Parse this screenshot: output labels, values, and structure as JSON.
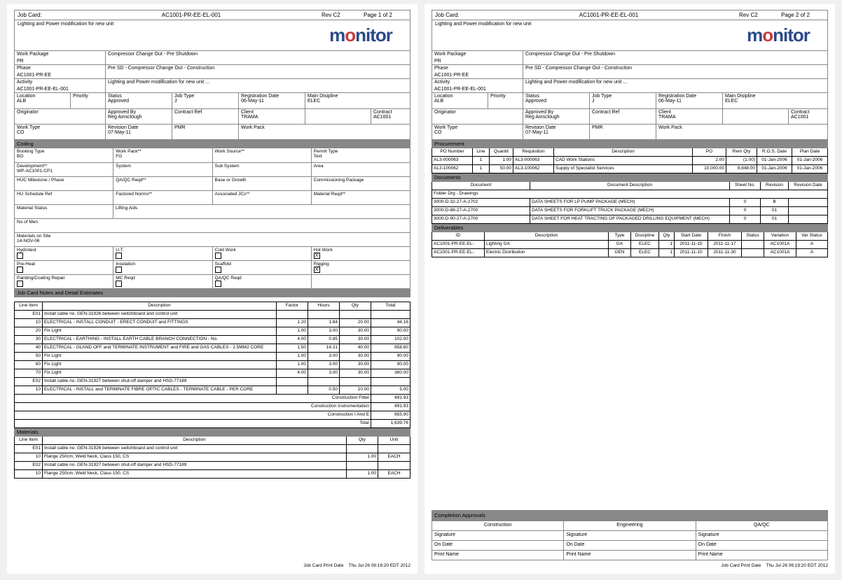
{
  "header": {
    "label": "Job Card:",
    "code": "AC1001-PR-EE-EL-001",
    "rev": "Rev C2",
    "page1": "Page 1 of 2",
    "page2": "Page 2 of 2",
    "subtitle": "Lighting and Power modification for new unit",
    "logo_pre": "m",
    "logo_o": "o",
    "logo_post": "nitor"
  },
  "meta": {
    "work_package_lbl": "Work Package",
    "work_package_sub": "PR",
    "work_package_val": "Compressor Change Out - Pre Shutdown",
    "phase_lbl": "Phase",
    "phase_sub": "AC1001-PR-EE",
    "phase_val": "Pre SD - Compressor Change Out - Construction",
    "activity_lbl": "Activity",
    "activity_sub": "AC1001-PR-EE-EL-001",
    "activity_val": "Lighting and Power modification for new unit ..."
  },
  "grid": {
    "r1": {
      "location_lbl": "Location",
      "location_val": "ALB",
      "priority_lbl": "Priority",
      "priority_val": "",
      "status_lbl": "Status",
      "status_val": "Approved",
      "jobtype_lbl": "Job Type",
      "jobtype_val": "J",
      "regdate_lbl": "Registration Date",
      "regdate_val": "06-May-11",
      "disc_lbl": "Main Disipline",
      "disc_val": "ELEC"
    },
    "r2": {
      "orig_lbl": "Originator",
      "orig_val": "",
      "appby_lbl": "Approved By",
      "appby_val": "Reg Ainsclough",
      "cref_lbl": "Contract Ref",
      "cref_val": "",
      "client_lbl": "Client",
      "client_val": "TRAMA",
      "contract_lbl": "Contract",
      "contract_val": "AC1001"
    },
    "r3": {
      "wtype_lbl": "Work Type",
      "wtype_val": "CO",
      "revdate_lbl": "Revision Date",
      "revdate_val": "07-May-11",
      "pmr_lbl": "PMR",
      "pmr_val": "",
      "wpack_lbl": "Work Pack",
      "wpack_val": ""
    }
  },
  "coding_title": "Coding",
  "coding": {
    "r1": [
      "Booking Type",
      "Work Pack**",
      "Work Source**",
      "Permit Type"
    ],
    "r1v": [
      "BO",
      "FG",
      "",
      "Text"
    ],
    "r2": [
      "Development**",
      "System",
      "Sub System",
      "Area"
    ],
    "r2v": [
      "WP-AC1001-CP1",
      "",
      "",
      ""
    ],
    "r3": [
      "HUC Milestone / Phase",
      "QA/QC Reqd**",
      "Base or Growth",
      "Commissioning Package"
    ],
    "r4": [
      "HU Schedule Ref",
      "Factored Norms**",
      "Associated JCs**",
      "Material Reqd**"
    ],
    "r5a": "Material Status",
    "r5b": "Lifting Aids",
    "r6": "No of Men",
    "r7a": "Materials on Site",
    "r7b": "14-NOV-06",
    "r8": {
      "a": "Hydrotest",
      "b": "U.T.",
      "c": "Cold Work",
      "d": "Hot Work",
      "d_chk": "X"
    },
    "r9": {
      "a": "Pre-Heat",
      "b": "Insulation",
      "c": "Scaffold",
      "d": "Rigging",
      "d_chk": "X"
    },
    "r10": {
      "a": "Painting/Coating Repair",
      "b": "MC Reqd",
      "c": "QA/QC Reqd"
    }
  },
  "notes_title": "Job Card Notes and Detail Estimates",
  "est_cols": [
    "Line Item",
    "Description",
    "Factor",
    "Hours",
    "Qty",
    "Total"
  ],
  "est": [
    {
      "li": "E01",
      "desc": "Install cable no. GEN-31926 between switchboard and control unit"
    },
    {
      "li": "10",
      "desc": "ELECTRICAL - INSTALL CONDUIT - ERECT CONDUIT and FITTINGS",
      "f": "1.20",
      "h": "1.84",
      "q": "20.00",
      "t": "44.16"
    },
    {
      "li": "20",
      "desc": "Fix Light",
      "f": "1.00",
      "h": "3.00",
      "q": "30.00",
      "t": "90.00"
    },
    {
      "li": "30",
      "desc": "ELECTRICAL - EARTHING - INSTALL EARTH CABLE BRANCH CONNECTION - No.",
      "f": "4.00",
      "h": "0.85",
      "q": "30.00",
      "t": "102.00"
    },
    {
      "li": "40",
      "desc": "ELECTRICAL - GLAND OFF and TERMINATE INSTRUMENT and FIRE and GAS CABLES - 2.5MM2 CORE",
      "f": "1.50",
      "h": "14.31",
      "q": "40.00",
      "t": "858.60"
    },
    {
      "li": "50",
      "desc": "Fix Light",
      "f": "1.00",
      "h": "3.00",
      "q": "30.00",
      "t": "90.00"
    },
    {
      "li": "60",
      "desc": "Fix Light",
      "f": "1.00",
      "h": "3.00",
      "q": "30.00",
      "t": "90.00"
    },
    {
      "li": "70",
      "desc": "Fix Light",
      "f": "4.00",
      "h": "3.00",
      "q": "30.00",
      "t": "360.00"
    },
    {
      "li": "E02",
      "desc": "Install cable no. GEN-31927 between shut-off damper and HSD-77189"
    },
    {
      "li": "10",
      "desc": "ELECTRICAL - INSTALL and TERMINATE FIBRE OPTIC CABLES - TERMINATE CABLE - PER CORE",
      "f": "",
      "h": "0.50",
      "q": "10.00",
      "t": "5.00"
    }
  ],
  "est_tot": [
    {
      "lbl": "Construction Fitter",
      "v": "491.93"
    },
    {
      "lbl": "Construction Instrumentation",
      "v": "491.93"
    },
    {
      "lbl": "Construction I And E",
      "v": "655.90"
    },
    {
      "lbl": "Total",
      "v": "1,639.76"
    }
  ],
  "mat_title": "Materials",
  "mat_cols": [
    "Line Item",
    "Description",
    "Qty",
    "Unit"
  ],
  "mat": [
    {
      "li": "E01",
      "desc": "Install cable no. GEN-31926 between switchboard and control unit"
    },
    {
      "li": "10",
      "desc": "Flange 250cm, Weld Neck, Class 150, CS",
      "q": "1.00",
      "u": "EACH"
    },
    {
      "li": "E02",
      "desc": "Install cable no. GEN-31927 between shut-off damper and HSD-77189"
    },
    {
      "li": "10",
      "desc": "Flange 250cm, Weld Neck, Class 150, CS",
      "q": "1.00",
      "u": "EACH"
    }
  ],
  "proc_title": "Procurement",
  "proc_cols": [
    "PO Number",
    "Line",
    "Quantit",
    "Requisition",
    "Description",
    "PO",
    "Rem Qty",
    "R.O.S. Date",
    "Plan Date"
  ],
  "proc": [
    {
      "po": "AL3-000063",
      "ln": "1",
      "q": "1.00",
      "req": "AL3-000063",
      "desc": "CAD Work Stations",
      "pov": "2.00",
      "rem": "(1.00)",
      "ros": "01-Jan-2006",
      "plan": "01-Jan-2006"
    },
    {
      "po": "AL3-100062",
      "ln": "1",
      "q": "50.00",
      "req": "AL3-100062",
      "desc": "Supply of Specialist Services",
      "pov": "10,000.00",
      "rem": "9,848.00",
      "ros": "01-Jan-2006",
      "plan": "01-Jan-2006"
    }
  ],
  "docs_title": "Documents",
  "docs_cols": [
    "Document",
    "Document Description",
    "Sheet No.",
    "Revision",
    "Revision Date"
  ],
  "docs_group": "Folder Drg - Drawings",
  "docs": [
    {
      "d": "3000-D-32-27-A-2702",
      "desc": "DATA SHEETS FOR LP PUMP PACKAGE (MECH)",
      "sh": "0",
      "rev": "B",
      "rd": ""
    },
    {
      "d": "3000-D-88-27-A-2700",
      "desc": "DATA SHEETS FOR FORKLIFT TRUCK PACKAGE (MECH)",
      "sh": "0",
      "rev": "01",
      "rd": ""
    },
    {
      "d": "3000-D-90-27-A-2700",
      "desc": "DATA SHEET FOR HEAT TRACTING OF PACKAGED DRILLING EQUIPMENT (MECH)",
      "sh": "0",
      "rev": "01",
      "rd": ""
    }
  ],
  "deliv_title": "Deliverables",
  "deliv_cols": [
    "ID",
    "Description",
    "Type",
    "Discipline",
    "Qty",
    "Start Date",
    "Finish",
    "Status",
    "Variation",
    "Var Status"
  ],
  "deliv": [
    {
      "id": "AC1001-PR-EE-EL-",
      "desc": "Lighting GA",
      "type": "GA",
      "disc": "ELEC",
      "q": "1",
      "sd": "2011-11-15",
      "fd": "2011-11-17",
      "st": "",
      "var": "AC1001A",
      "vs": "A"
    },
    {
      "id": "AC1001-PR-EE-EL-",
      "desc": "Electric Distribution",
      "type": "GEN",
      "disc": "ELEC",
      "q": "1",
      "sd": "2011-11-10",
      "fd": "2011-11-30",
      "st": "",
      "var": "AC1001A",
      "vs": "A"
    }
  ],
  "appr_title": "Completion Approvals",
  "appr_cols": [
    "Construction",
    "Engineering",
    "QA/QC"
  ],
  "appr_rows": [
    "Signature",
    "On Date",
    "Print Name"
  ],
  "footer": {
    "lbl": "Job Card Print Date",
    "val": "Thu Jul 26 06:19:20 EDT 2012"
  }
}
